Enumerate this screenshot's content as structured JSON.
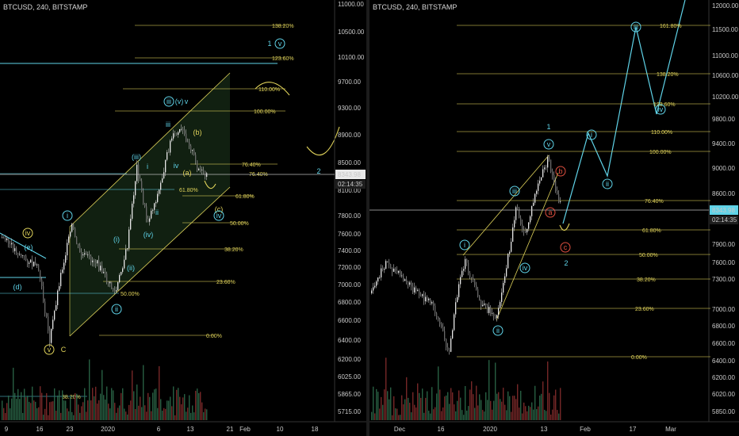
{
  "left": {
    "symbol": "BTCUSD, 240, BITSTAMP",
    "current_price": "8343.98",
    "countdown": "02:14:35",
    "price_labels": [
      "11000.00",
      "10500.00",
      "10100.00",
      "9700.00",
      "9300.00",
      "8900.00",
      "8500.00",
      "8100.00",
      "7800.00",
      "7600.00",
      "7400.00",
      "7200.00",
      "7000.00",
      "6800.00",
      "6600.00",
      "6400.00",
      "6200.00",
      "6025.00",
      "5865.00",
      "5715.00"
    ],
    "date_labels": [
      "9",
      "16",
      "23",
      "2020",
      "6",
      "13",
      "21",
      "Feb",
      "10",
      "18"
    ],
    "fib_levels": [
      {
        "label": "138.20%",
        "color": "#e0d35a"
      },
      {
        "label": "123.60%",
        "color": "#e0d35a"
      },
      {
        "label": "110.00%",
        "color": "#e0d35a"
      },
      {
        "label": "100.00%",
        "color": "#e0d35a"
      },
      {
        "label": "76.40%",
        "color": "#e0d35a"
      },
      {
        "label": "61.80%",
        "color": "#e0d35a"
      },
      {
        "label": "50.00%",
        "color": "#e0d35a"
      },
      {
        "label": "38.20%",
        "color": "#e0d35a"
      },
      {
        "label": "23.60%",
        "color": "#e0d35a"
      },
      {
        "label": "0.00%",
        "color": "#e0d35a"
      }
    ],
    "cyan_levels": [
      {
        "label": "76.40%",
        "color": "#5fd3e8"
      },
      {
        "label": "61.80%",
        "color": "#5fd3e8"
      },
      {
        "label": "50.00%",
        "color": "#5fd3e8"
      },
      {
        "label": "38.20%",
        "color": "#5fd3e8"
      }
    ],
    "wave_labels": [
      {
        "text": "1",
        "circled": false,
        "color": "#5fd3e8"
      },
      {
        "text": "v",
        "circled": true,
        "color": "#5fd3e8"
      },
      {
        "text": "iii",
        "circled": true,
        "color": "#5fd3e8"
      },
      {
        "text": "(v)",
        "circled": false,
        "color": "#5fd3e8"
      },
      {
        "text": "v",
        "circled": false,
        "color": "#5fd3e8"
      },
      {
        "text": "iii",
        "circled": false,
        "color": "#5fd3e8"
      },
      {
        "text": "(b)",
        "circled": false,
        "color": "#e0d35a"
      },
      {
        "text": "(iii)",
        "circled": false,
        "color": "#5fd3e8"
      },
      {
        "text": "iv",
        "circled": false,
        "color": "#5fd3e8"
      },
      {
        "text": "(a)",
        "circled": false,
        "color": "#e0d35a"
      },
      {
        "text": "i",
        "circled": false,
        "color": "#5fd3e8"
      },
      {
        "text": "ii",
        "circled": false,
        "color": "#5fd3e8"
      },
      {
        "text": "(c)",
        "circled": false,
        "color": "#e0d35a"
      },
      {
        "text": "iv",
        "circled": true,
        "color": "#5fd3e8"
      },
      {
        "text": "(iv)",
        "circled": false,
        "color": "#5fd3e8"
      },
      {
        "text": "(i)",
        "circled": false,
        "color": "#5fd3e8"
      },
      {
        "text": "(ii)",
        "circled": false,
        "color": "#5fd3e8"
      },
      {
        "text": "i",
        "circled": true,
        "color": "#5fd3e8"
      },
      {
        "text": "iv",
        "circled": true,
        "color": "#e0d35a"
      },
      {
        "text": "(e)",
        "circled": false,
        "color": "#5fd3e8"
      },
      {
        "text": "(d)",
        "circled": false,
        "color": "#5fd3e8"
      },
      {
        "text": "ii",
        "circled": true,
        "color": "#5fd3e8"
      },
      {
        "text": "v",
        "circled": true,
        "color": "#e0d35a"
      },
      {
        "text": "C",
        "circled": false,
        "color": "#e0d35a"
      },
      {
        "text": "2",
        "circled": false,
        "color": "#5fd3e8"
      }
    ]
  },
  "right": {
    "symbol": "BTCUSD, 240, BITSTAMP",
    "current_price": "8343.98",
    "countdown": "02:14:35",
    "price_labels": [
      "12000.00",
      "11500.00",
      "11000.00",
      "10600.00",
      "10200.00",
      "9800.00",
      "9400.00",
      "9000.00",
      "8600.00",
      "8250.00",
      "7900.00",
      "7600.00",
      "7300.00",
      "7000.00",
      "6800.00",
      "6600.00",
      "6400.00",
      "6200.00",
      "6020.00",
      "5850.00"
    ],
    "date_labels": [
      "Dec",
      "16",
      "2020",
      "13",
      "Feb",
      "17",
      "Mar"
    ],
    "fib_levels": [
      {
        "label": "161.80%",
        "color": "#e0d35a"
      },
      {
        "label": "138.20%",
        "color": "#e0d35a"
      },
      {
        "label": "123.60%",
        "color": "#e0d35a"
      },
      {
        "label": "110.00%",
        "color": "#e0d35a"
      },
      {
        "label": "100.00%",
        "color": "#e0d35a"
      },
      {
        "label": "76.40%",
        "color": "#e0d35a"
      },
      {
        "label": "61.80%",
        "color": "#e0d35a"
      },
      {
        "label": "50.00%",
        "color": "#e0d35a"
      },
      {
        "label": "38.20%",
        "color": "#e0d35a"
      },
      {
        "label": "23.60%",
        "color": "#e0d35a"
      },
      {
        "label": "0.00%",
        "color": "#e0d35a"
      }
    ],
    "wave_labels": [
      {
        "text": "iii",
        "circled": true,
        "color": "#5fd3e8"
      },
      {
        "text": "i",
        "circled": true,
        "color": "#5fd3e8"
      },
      {
        "text": "1",
        "circled": false,
        "color": "#5fd3e8"
      },
      {
        "text": "v",
        "circled": true,
        "color": "#5fd3e8"
      },
      {
        "text": "b",
        "circled": true,
        "color": "#e05040"
      },
      {
        "text": "iii",
        "circled": true,
        "color": "#5fd3e8"
      },
      {
        "text": "a",
        "circled": true,
        "color": "#e05040"
      },
      {
        "text": "ii",
        "circled": true,
        "color": "#5fd3e8"
      },
      {
        "text": "iv",
        "circled": true,
        "color": "#5fd3e8"
      },
      {
        "text": "i",
        "circled": true,
        "color": "#5fd3e8"
      },
      {
        "text": "c",
        "circled": true,
        "color": "#e05040"
      },
      {
        "text": "2",
        "circled": false,
        "color": "#5fd3e8"
      },
      {
        "text": "iv",
        "circled": true,
        "color": "#5fd3e8"
      },
      {
        "text": "ii",
        "circled": true,
        "color": "#5fd3e8"
      }
    ]
  },
  "chart_data": [
    {
      "type": "candlestick",
      "title": "BTCUSD, 240, BITSTAMP",
      "yaxis_labels": [
        "11000.00",
        "10500.00",
        "10100.00",
        "9700.00",
        "9300.00",
        "8900.00",
        "8500.00",
        "8100.00",
        "7800.00",
        "7600.00",
        "7400.00",
        "7200.00",
        "7000.00",
        "6800.00",
        "6600.00",
        "6400.00",
        "6200.00",
        "6025.00",
        "5865.00",
        "5715.00"
      ],
      "xaxis_labels": [
        "9",
        "16",
        "23",
        "2020",
        "6",
        "13",
        "21",
        "Feb",
        "10",
        "18"
      ],
      "last_price": 8343.98,
      "volume": true
    },
    {
      "type": "candlestick",
      "title": "BTCUSD, 240, BITSTAMP",
      "yaxis_labels": [
        "12000.00",
        "11500.00",
        "11000.00",
        "10600.00",
        "10200.00",
        "9800.00",
        "9400.00",
        "9000.00",
        "8600.00",
        "8250.00",
        "7900.00",
        "7600.00",
        "7300.00",
        "7000.00",
        "6800.00",
        "6600.00",
        "6400.00",
        "6200.00",
        "6020.00",
        "5850.00"
      ],
      "xaxis_labels": [
        "Dec",
        "16",
        "2020",
        "13",
        "Feb",
        "17",
        "Mar"
      ],
      "last_price": 8343.98,
      "volume": true
    }
  ]
}
